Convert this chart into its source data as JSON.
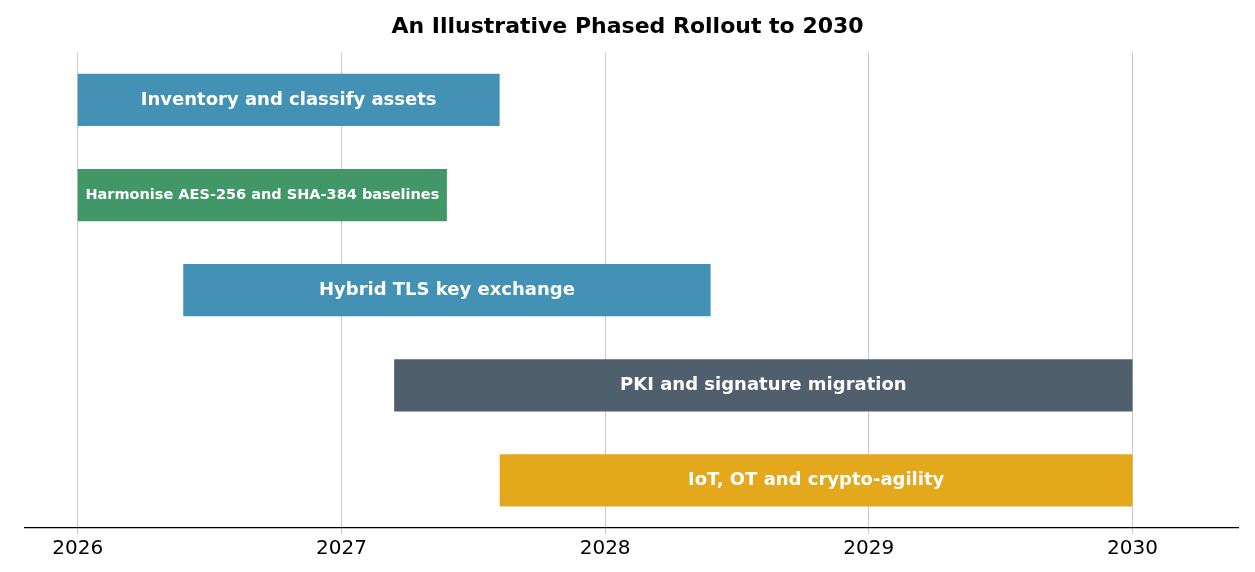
{
  "chart_data": {
    "type": "bar",
    "orientation": "horizontal",
    "title": "An Illustrative Phased Rollout to 2030",
    "categories": [
      "Inventory and classify assets",
      "Harmonise AES-256 and SHA-384 baselines",
      "Hybrid TLS key exchange",
      "PKI and signature migration",
      "IoT, OT and crypto-agility"
    ],
    "base": [
      2026,
      2026,
      2026.4,
      2027.2,
      2027.6
    ],
    "values": [
      1.6,
      1.4,
      2,
      2.8,
      2.4
    ],
    "colors": [
      "#4392b5",
      "#429768",
      "#4392b5",
      "#4f5f6d",
      "#e3a81c"
    ],
    "xlim": [
      2025.8,
      2030.4
    ],
    "xticks": [
      2026,
      2027,
      2028,
      2029,
      2030
    ],
    "grid": "x",
    "tick_labels": "x",
    "legend": false
  }
}
